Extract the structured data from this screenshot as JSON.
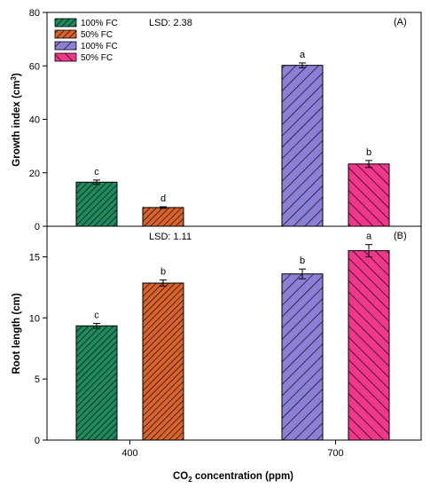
{
  "colors": {
    "green": "#1f8a5e",
    "orange": "#d9632a",
    "purple": "#8b7fd6",
    "pink": "#f0388a"
  },
  "chart_data": [
    {
      "type": "bar",
      "panel_label": "(A)",
      "lsd_label": "LSD: 2.38",
      "ylabel": "Growth index (cm",
      "ylabel_sup": "3",
      "ylabel_end": ")",
      "ylim": [
        0,
        80
      ],
      "yticks": [
        0,
        20,
        40,
        60,
        80
      ],
      "categories": [
        "400",
        "700"
      ],
      "legend": {
        "placement": "top-left",
        "entries": [
          {
            "label": "100% FC",
            "color": "#1f8a5e",
            "pattern": "fine"
          },
          {
            "label": "50% FC",
            "color": "#d9632a",
            "pattern": "fine"
          },
          {
            "label": "100% FC",
            "color": "#8b7fd6",
            "pattern": "coarse"
          },
          {
            "label": "50% FC",
            "color": "#f0388a",
            "pattern": "coarse"
          }
        ]
      },
      "bars": [
        {
          "category": "400",
          "group": "100% FC",
          "value": 16.5,
          "error": 0.8,
          "letter": "c",
          "color": "#1f8a5e",
          "pattern": "fine"
        },
        {
          "category": "400",
          "group": "50% FC",
          "value": 7.0,
          "error": 0.3,
          "letter": "d",
          "color": "#d9632a",
          "pattern": "fine"
        },
        {
          "category": "700",
          "group": "100% FC",
          "value": 60.2,
          "error": 0.9,
          "letter": "a",
          "color": "#8b7fd6",
          "pattern": "coarse"
        },
        {
          "category": "700",
          "group": "50% FC",
          "value": 23.3,
          "error": 1.3,
          "letter": "b",
          "color": "#f0388a",
          "pattern": "coarse"
        }
      ]
    },
    {
      "type": "bar",
      "panel_label": "(B)",
      "lsd_label": "LSD: 1.11",
      "ylabel": "Root length (cm)",
      "ylim": [
        0,
        17.5
      ],
      "yticks": [
        0,
        5,
        10,
        15
      ],
      "categories": [
        "400",
        "700"
      ],
      "xlabel_main": "CO",
      "xlabel_sub": "2",
      "xlabel_end": " concentration (ppm)",
      "bars": [
        {
          "category": "400",
          "group": "100% FC",
          "value": 9.35,
          "error": 0.2,
          "letter": "c",
          "color": "#1f8a5e",
          "pattern": "fine"
        },
        {
          "category": "400",
          "group": "50% FC",
          "value": 12.85,
          "error": 0.25,
          "letter": "b",
          "color": "#d9632a",
          "pattern": "fine"
        },
        {
          "category": "700",
          "group": "100% FC",
          "value": 13.6,
          "error": 0.4,
          "letter": "b",
          "color": "#8b7fd6",
          "pattern": "coarse"
        },
        {
          "category": "700",
          "group": "50% FC",
          "value": 15.5,
          "error": 0.5,
          "letter": "a",
          "color": "#f0388a",
          "pattern": "coarse"
        }
      ]
    }
  ]
}
